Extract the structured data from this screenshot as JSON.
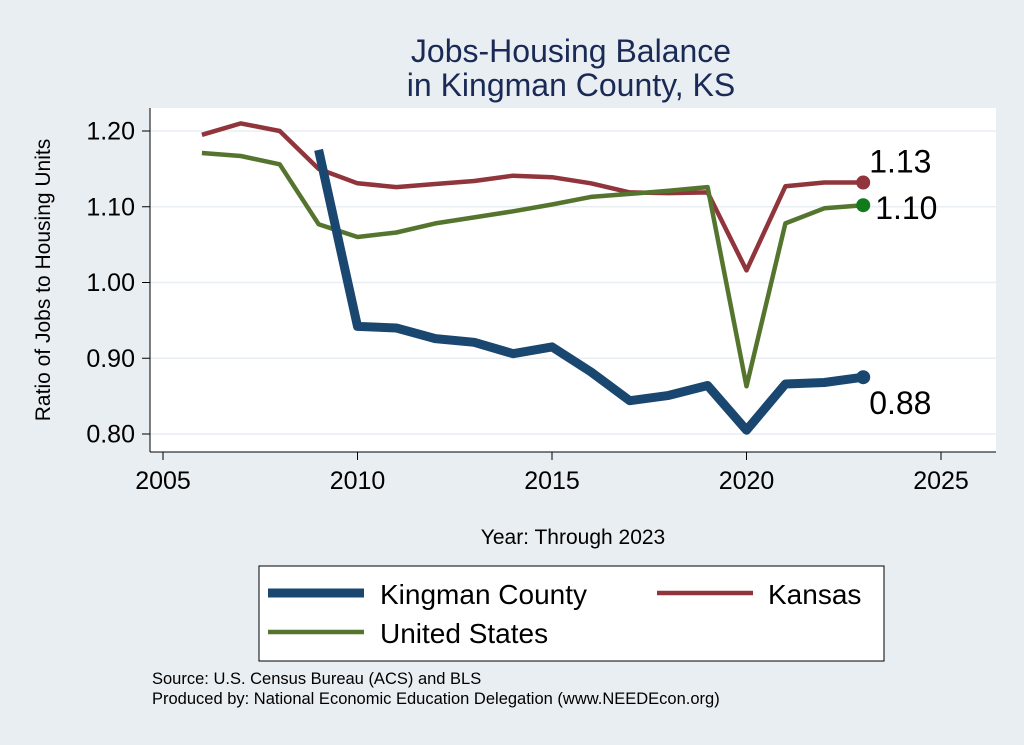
{
  "chart_data": {
    "type": "line",
    "title_lines": [
      "Jobs-Housing Balance",
      "in Kingman County, KS"
    ],
    "xlabel": "Year: Through 2023",
    "ylabel": "Ratio of Jobs to Housing Units",
    "xlim": [
      2005,
      2025
    ],
    "ylim": [
      0.78,
      1.22
    ],
    "xticks": [
      2005,
      2010,
      2015,
      2020,
      2025
    ],
    "yticks": [
      0.8,
      0.9,
      1.0,
      1.1,
      1.2
    ],
    "ytick_labels": [
      "0.80",
      "0.90",
      "1.00",
      "1.10",
      "1.20"
    ],
    "grid": true,
    "legend_position": "bottom",
    "series": [
      {
        "name": "Kingman County",
        "color": "#1a476f",
        "x": [
          2009,
          2010,
          2011,
          2012,
          2013,
          2014,
          2015,
          2016,
          2017,
          2018,
          2019,
          2020,
          2021,
          2022,
          2023
        ],
        "values": [
          1.175,
          0.942,
          0.94,
          0.926,
          0.921,
          0.906,
          0.915,
          0.882,
          0.844,
          0.851,
          0.864,
          0.805,
          0.866,
          0.868,
          0.875
        ],
        "end_label": "0.88"
      },
      {
        "name": "Kansas",
        "color": "#90353b",
        "x": [
          2006,
          2007,
          2008,
          2009,
          2010,
          2011,
          2012,
          2013,
          2014,
          2015,
          2016,
          2017,
          2018,
          2019,
          2020,
          2021,
          2022,
          2023
        ],
        "values": [
          1.195,
          1.21,
          1.2,
          1.15,
          1.131,
          1.126,
          1.13,
          1.134,
          1.141,
          1.139,
          1.131,
          1.119,
          1.118,
          1.119,
          1.016,
          1.127,
          1.132,
          1.132
        ],
        "end_label": "1.13"
      },
      {
        "name": "United States",
        "color": "#55752f",
        "marker_color": "#117a1a",
        "x": [
          2006,
          2007,
          2008,
          2009,
          2010,
          2011,
          2012,
          2013,
          2014,
          2015,
          2016,
          2017,
          2018,
          2019,
          2020,
          2021,
          2022,
          2023
        ],
        "values": [
          1.171,
          1.167,
          1.156,
          1.077,
          1.06,
          1.066,
          1.078,
          1.086,
          1.094,
          1.103,
          1.113,
          1.117,
          1.121,
          1.126,
          0.863,
          1.078,
          1.098,
          1.102
        ],
        "end_label": "1.10"
      }
    ]
  },
  "footer": {
    "source": "Source: U.S. Census Bureau (ACS) and BLS",
    "produced_by": "Produced by: National Economic Education Delegation (www.NEEDEcon.org)"
  }
}
